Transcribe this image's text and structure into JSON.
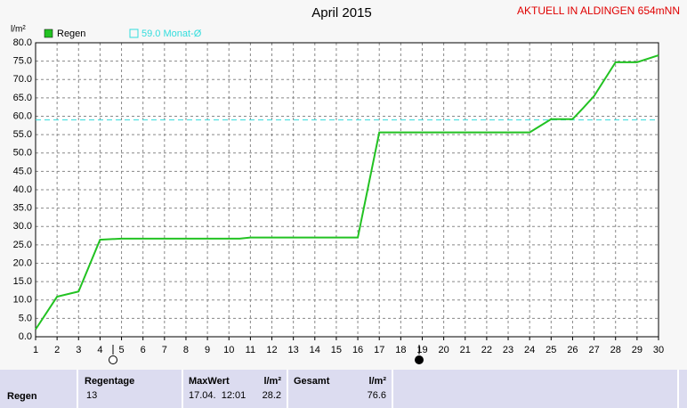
{
  "chart_data": {
    "type": "line",
    "title": "April 2015",
    "subtitle": "AKTUELL IN ALDINGEN 654mNN",
    "ylabel": "l/m²",
    "x": [
      1,
      2,
      3,
      4,
      5,
      10.5,
      11,
      16,
      17,
      24,
      25,
      26,
      26.5,
      27,
      28,
      29,
      30
    ],
    "series": [
      {
        "name": "Regen",
        "color": "#22c222",
        "values": [
          2,
          10.9,
          12.3,
          26.4,
          26.7,
          26.7,
          27,
          27,
          55.6,
          55.6,
          59.2,
          59.2,
          62.3,
          65.5,
          74.7,
          74.7,
          76.6
        ]
      }
    ],
    "reference_line": {
      "value": 59,
      "label": "59.0 Monat-Ø",
      "color": "#33dddd"
    },
    "xlim": [
      1,
      30
    ],
    "ylim": [
      0,
      80
    ],
    "xticks": [
      1,
      2,
      3,
      4,
      5,
      6,
      7,
      8,
      9,
      10,
      11,
      12,
      13,
      14,
      15,
      16,
      17,
      18,
      19,
      20,
      21,
      22,
      23,
      24,
      25,
      26,
      27,
      28,
      29,
      30
    ],
    "yticks": [
      {
        "value": 0,
        "label": "0.0"
      },
      {
        "value": 5,
        "label": "5.0"
      },
      {
        "value": 10,
        "label": "10.0"
      },
      {
        "value": 15,
        "label": "15.0"
      },
      {
        "value": 20,
        "label": "20.0"
      },
      {
        "value": 25,
        "label": "25.0"
      },
      {
        "value": 30,
        "label": "30.0"
      },
      {
        "value": 35,
        "label": "35.0"
      },
      {
        "value": 40,
        "label": "40.0"
      },
      {
        "value": 45,
        "label": "45.0"
      },
      {
        "value": 50,
        "label": "50.0"
      },
      {
        "value": 55,
        "label": "55.0"
      },
      {
        "value": 60,
        "label": "60.0"
      },
      {
        "value": 65,
        "label": "65.0"
      },
      {
        "value": 70,
        "label": "70.0"
      },
      {
        "value": 75,
        "label": "75.0"
      },
      {
        "value": 80,
        "label": "80.0"
      }
    ],
    "grid": true
  },
  "table": {
    "row_label": "Regen",
    "headers": [
      "Regentage",
      "MaxWert",
      "l/m²",
      "Gesamt",
      "l/m²"
    ],
    "cells": [
      "13",
      "17.04.  12:01",
      "28.2",
      "76.6"
    ]
  }
}
